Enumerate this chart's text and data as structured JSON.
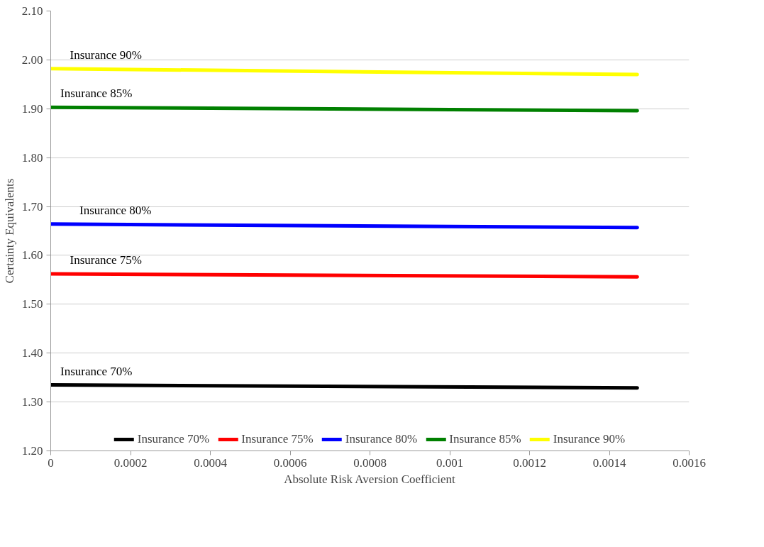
{
  "chart_data": {
    "type": "line",
    "xlabel": "Absolute Risk Aversion Coefficient",
    "ylabel": "Certainty Equivalents",
    "x": [
      0,
      0.00147
    ],
    "series": [
      {
        "name": "Insurance 70%",
        "color": "#000000",
        "values": [
          1.335,
          1.329
        ]
      },
      {
        "name": "Insurance 75%",
        "color": "#ff0000",
        "values": [
          1.562,
          1.556
        ]
      },
      {
        "name": "Insurance 80%",
        "color": "#0000ff",
        "values": [
          1.664,
          1.657
        ]
      },
      {
        "name": "Insurance 85%",
        "color": "#008000",
        "values": [
          1.903,
          1.896
        ]
      },
      {
        "name": "Insurance 90%",
        "color": "#ffff00",
        "values": [
          1.982,
          1.97
        ]
      }
    ],
    "xlim": [
      0,
      0.0016
    ],
    "xticks": [
      0,
      0.0002,
      0.0004,
      0.0006,
      0.0008,
      0.001,
      0.0012,
      0.0014,
      0.0016
    ],
    "ylim": [
      1.2,
      2.1
    ],
    "yticks": [
      {
        "value": 1.2,
        "label": "1.20"
      },
      {
        "value": 1.3,
        "label": "1.30"
      },
      {
        "value": 1.4,
        "label": "1.40"
      },
      {
        "value": 1.5,
        "label": "1.50"
      },
      {
        "value": 1.6,
        "label": "1.60"
      },
      {
        "value": 1.7,
        "label": "1.70"
      },
      {
        "value": 1.8,
        "label": "1.80"
      },
      {
        "value": 1.9,
        "label": "1.90"
      },
      {
        "value": 2.0,
        "label": "2.00"
      },
      {
        "value": 2.1,
        "label": "2.10"
      }
    ],
    "grid": "y",
    "legend": "bottom",
    "marker": "none",
    "line_style": "solid"
  }
}
